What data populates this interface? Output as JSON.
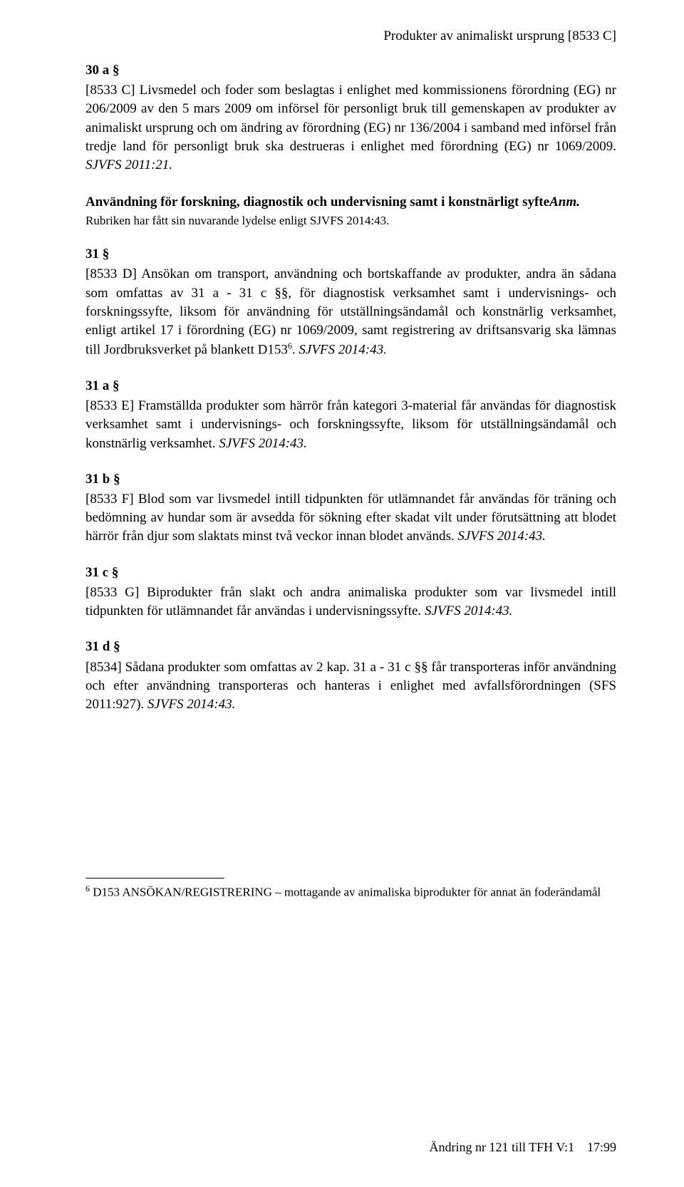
{
  "header": {
    "right": "Produkter av animaliskt ursprung [8533 C]"
  },
  "sections": {
    "s30a": {
      "heading": "30 a §",
      "body_pre": "[8533 C] Livsmedel och foder som beslagtas i enlighet med kommissionens förordning (EG) nr 206/2009 av den 5 mars 2009 om införsel för personligt bruk till gemenskapen av produkter av animaliskt ursprung och om ändring av förordning (EG) nr 136/2004 i samband med införsel från tredje land för personligt bruk ska destrueras i enlighet med förordning (EG) nr 1069/2009. ",
      "body_italic": "SJVFS 2011:21."
    },
    "subheading": {
      "text_pre": "Användning för forskning, diagnostik och undervisning samt i konstnärligt syfte",
      "text_italic": "Anm.",
      "note": "Rubriken har fått sin nuvarande lydelse enligt SJVFS 2014:43."
    },
    "s31": {
      "heading": "31 §",
      "body_pre": "[8533 D] Ansökan om transport, användning och bortskaffande av produkter, andra än sådana som omfattas av 31 a - 31 c §§, för diagnostisk verksamhet samt i undervisnings- och forskningssyfte, liksom för användning för utställningsändamål och konstnärlig verksamhet, enligt artikel 17 i förordning (EG) nr 1069/2009, samt registrering av driftsansvarig ska lämnas till Jordbruksverket på blankett D153",
      "sup": "6",
      "body_post": ". ",
      "body_italic": "SJVFS 2014:43."
    },
    "s31a": {
      "heading": "31 a §",
      "body_pre": "[8533 E] Framställda produkter som härrör från kategori 3-material får användas för diagnostisk verksamhet samt i undervisnings- och forskningssyfte, liksom för utställningsändamål och konstnärlig verksamhet. ",
      "body_italic": "SJVFS 2014:43."
    },
    "s31b": {
      "heading": "31 b §",
      "body_pre": "[8533 F] Blod som var livsmedel intill tidpunkten för utlämnandet får användas för träning och bedömning av hundar som är avsedda för sökning efter skadat vilt under förutsättning att blodet härrör från djur som slaktats minst två veckor innan blodet används. ",
      "body_italic": "SJVFS 2014:43."
    },
    "s31c": {
      "heading": "31 c §",
      "body_pre": "[8533 G] Biprodukter från slakt och andra animaliska produkter som var livsmedel intill tidpunkten för utlämnandet får användas i undervisningssyfte. ",
      "body_italic": "SJVFS 2014:43."
    },
    "s31d": {
      "heading": "31 d §",
      "body_pre": "[8534] Sådana produkter som omfattas av 2 kap. 31 a - 31 c §§ får transporteras inför användning och efter användning transporteras och hanteras i enlighet med avfallsförordningen (SFS 2011:927). ",
      "body_italic": "SJVFS 2014:43."
    }
  },
  "footnote": {
    "sup": "6",
    "text": " D153 ANSÖKAN/REGISTRERING – mottagande av animaliska biprodukter för annat än foderändamål"
  },
  "footer": {
    "left": "Ändring nr 121 till TFH V:1",
    "right": "17:99"
  }
}
